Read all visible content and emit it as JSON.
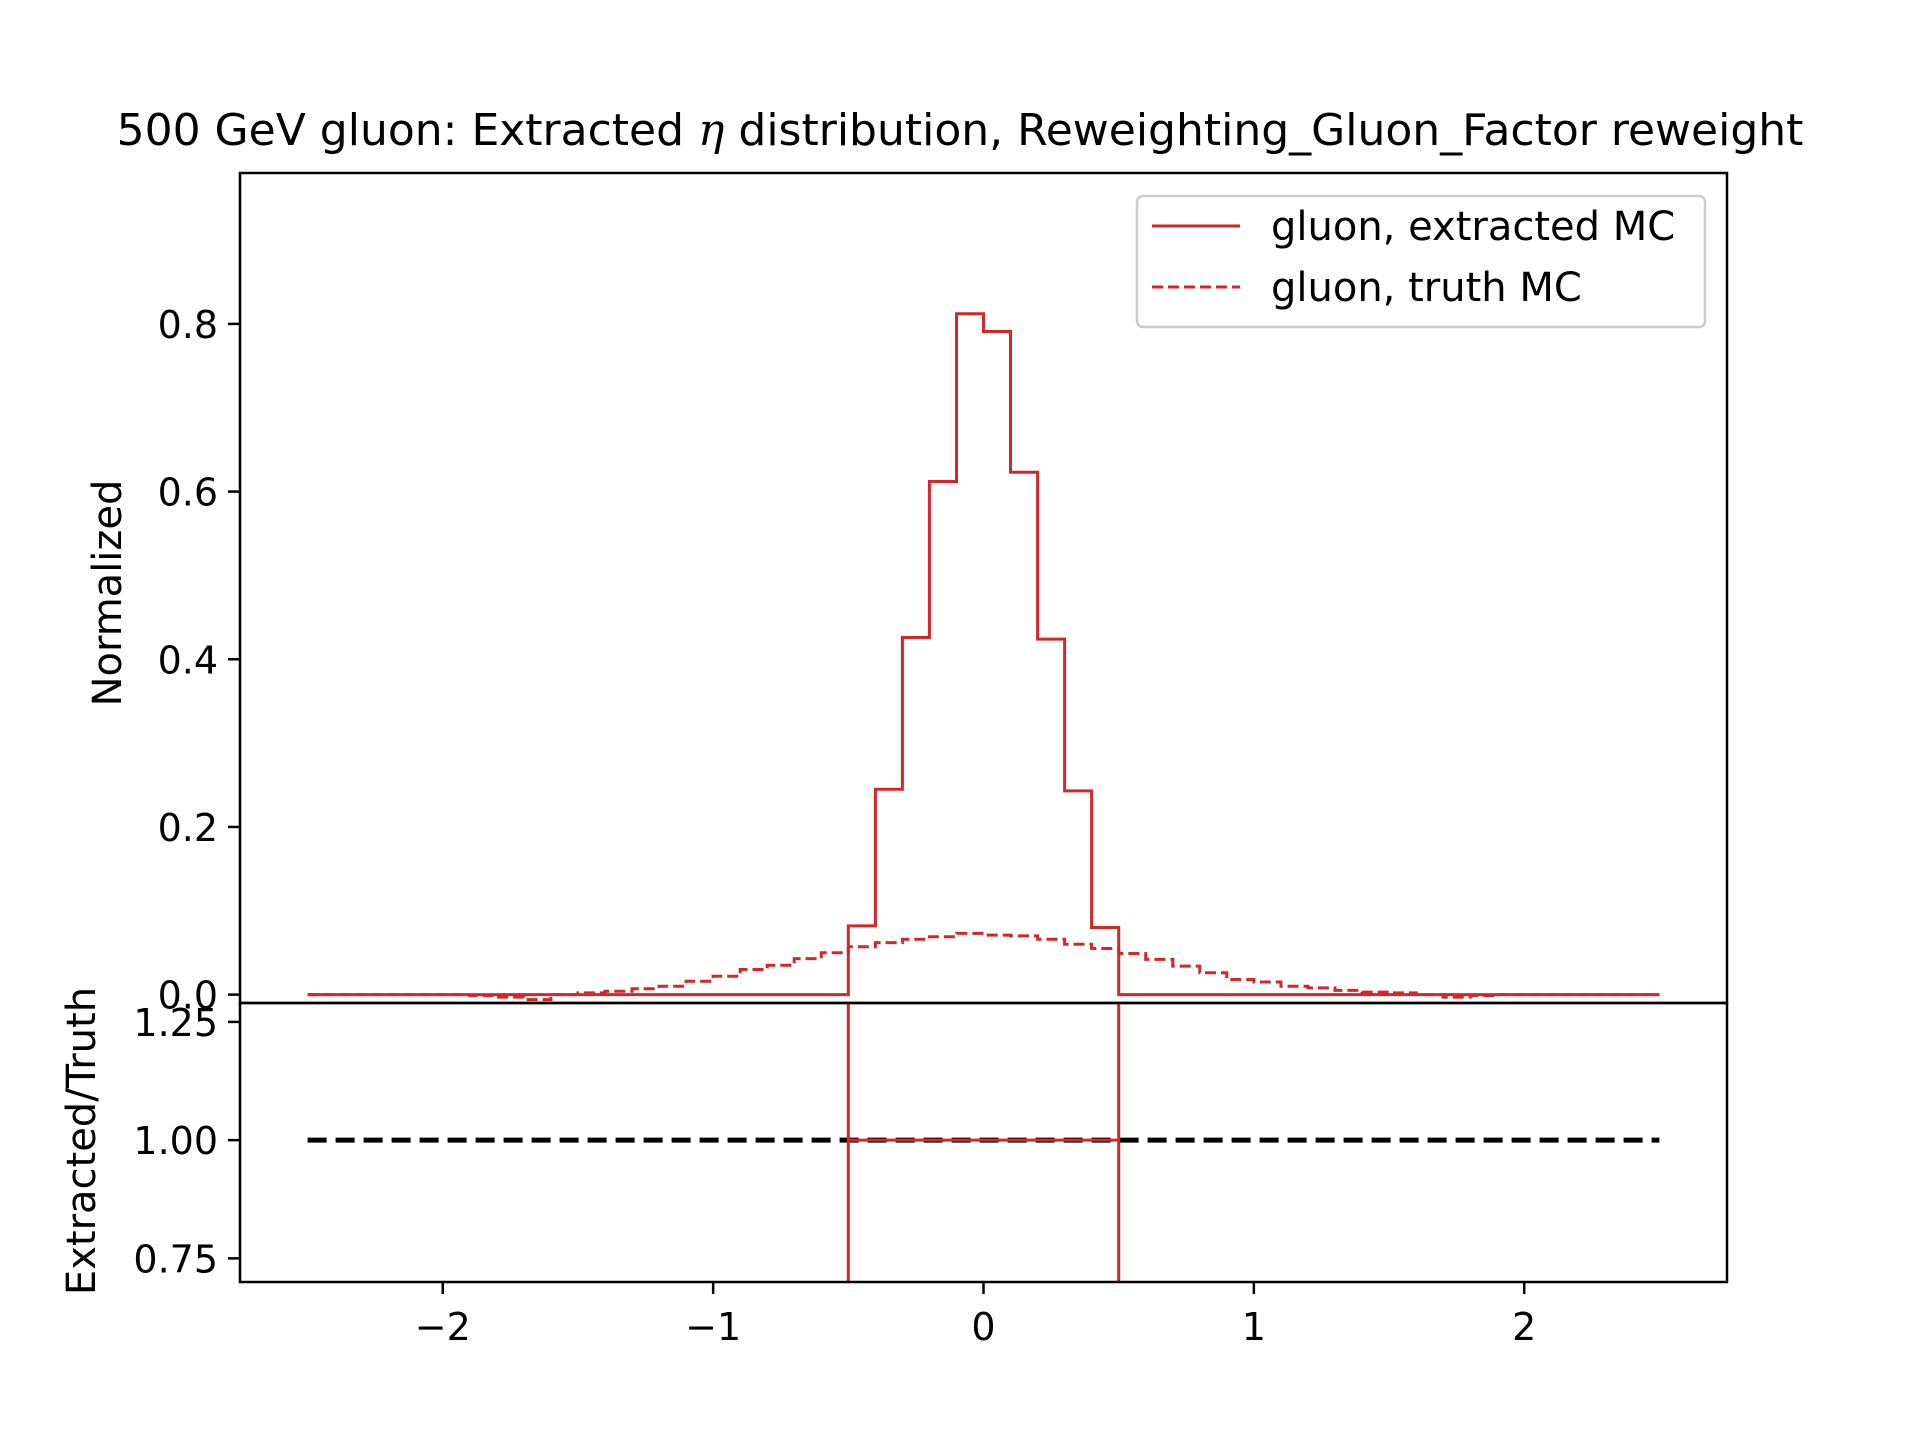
{
  "title": {
    "before": "500 GeV gluon: Extracted ",
    "eta": "η",
    "after": " distribution, Reweighting_Gluon_Factor reweight"
  },
  "chart_data": [
    {
      "type": "line",
      "title": "500 GeV gluon: Extracted η distribution, Reweighting_Gluon_Factor reweight",
      "drawstyle": "steps-post",
      "xlabel": "",
      "ylabel": "Normalized",
      "xlim": [
        -2.75,
        2.75
      ],
      "ylim": [
        -0.01,
        0.98
      ],
      "yticks": [
        0.0,
        0.2,
        0.4,
        0.6,
        0.8
      ],
      "ytick_labels": [
        "0.0",
        "0.2",
        "0.4",
        "0.6",
        "0.8"
      ],
      "grid": false,
      "legend": {
        "position": "top-right",
        "entries": [
          "gluon, extracted MC",
          "gluon, truth MC"
        ]
      },
      "series": [
        {
          "name": "gluon, extracted MC",
          "color": "#d62728",
          "linestyle": "solid",
          "x": [
            -2.5,
            -2.4,
            -2.3,
            -2.2,
            -2.1,
            -2.0,
            -1.9,
            -1.8,
            -1.7,
            -1.6,
            -1.5,
            -1.4,
            -1.3,
            -1.2,
            -1.1,
            -1.0,
            -0.9,
            -0.8,
            -0.7,
            -0.6,
            -0.5,
            -0.4,
            -0.3,
            -0.2,
            -0.1,
            0.0,
            0.1,
            0.2,
            0.3,
            0.4,
            0.5,
            0.6,
            0.7,
            0.8,
            0.9,
            1.0,
            1.1,
            1.2,
            1.3,
            1.4,
            1.5,
            1.6,
            1.7,
            1.8,
            1.9,
            2.0,
            2.1,
            2.2,
            2.3,
            2.4,
            2.5
          ],
          "y": [
            0.0,
            0.0,
            0.0,
            0.0,
            0.0,
            0.0,
            0.0,
            0.0,
            0.0,
            0.0,
            0.0,
            0.0,
            0.0,
            0.0,
            0.0,
            0.0,
            0.0,
            0.0,
            0.0,
            0.0,
            0.082,
            0.245,
            0.426,
            0.612,
            0.812,
            0.791,
            0.623,
            0.424,
            0.243,
            0.08,
            0.0,
            0.0,
            0.0,
            0.0,
            0.0,
            0.0,
            0.0,
            0.0,
            0.0,
            0.0,
            0.0,
            0.0,
            0.0,
            0.0,
            0.0,
            0.0,
            0.0,
            0.0,
            0.0,
            0.0,
            0.0
          ]
        },
        {
          "name": "gluon, truth MC",
          "color": "#d62728",
          "linestyle": "dashed",
          "x": [
            -2.5,
            -2.4,
            -2.3,
            -2.2,
            -2.1,
            -2.0,
            -1.9,
            -1.8,
            -1.7,
            -1.6,
            -1.5,
            -1.4,
            -1.3,
            -1.2,
            -1.1,
            -1.0,
            -0.9,
            -0.8,
            -0.7,
            -0.6,
            -0.5,
            -0.4,
            -0.3,
            -0.2,
            -0.1,
            0.0,
            0.1,
            0.2,
            0.3,
            0.4,
            0.5,
            0.6,
            0.7,
            0.8,
            0.9,
            1.0,
            1.1,
            1.2,
            1.3,
            1.4,
            1.5,
            1.6,
            1.7,
            1.8,
            1.9,
            2.0,
            2.1,
            2.2,
            2.3,
            2.4,
            2.5
          ],
          "y": [
            0.0,
            0.0,
            0.0,
            0.0,
            0.0,
            0.0,
            -0.001,
            -0.003,
            -0.006,
            0.0,
            0.002,
            0.004,
            0.007,
            0.01,
            0.016,
            0.022,
            0.03,
            0.035,
            0.043,
            0.05,
            0.057,
            0.062,
            0.066,
            0.069,
            0.073,
            0.071,
            0.07,
            0.066,
            0.06,
            0.055,
            0.049,
            0.042,
            0.034,
            0.026,
            0.018,
            0.015,
            0.01,
            0.008,
            0.005,
            0.003,
            0.002,
            0.0,
            -0.003,
            -0.001,
            0.0,
            0.0,
            0.0,
            0.0,
            0.0,
            0.0,
            0.0
          ]
        }
      ]
    },
    {
      "type": "line",
      "drawstyle": "steps-post",
      "xlabel": "",
      "ylabel": "Extracted/Truth",
      "xlim": [
        -2.75,
        2.75
      ],
      "ylim": [
        0.7,
        1.29
      ],
      "xticks": [
        -2,
        -1,
        0,
        1,
        2
      ],
      "xtick_labels": [
        "−2",
        "−1",
        "0",
        "1",
        "2"
      ],
      "yticks": [
        0.75,
        1.0,
        1.25
      ],
      "ytick_labels": [
        "0.75",
        "1.00",
        "1.25"
      ],
      "grid": false,
      "reference_line": {
        "y": 1.0,
        "x": [
          -2.5,
          2.5
        ],
        "color": "#000000",
        "linestyle": "dashed"
      },
      "series": [
        {
          "color": "#d62728",
          "linestyle": "solid",
          "x": [
            -0.5,
            0.5
          ],
          "y": [
            1.0,
            1.0
          ],
          "note_values": "ratio far exceeds the axis outside the central region; vertical edges at -0.5 and 0.5 run through the full panel"
        }
      ]
    }
  ]
}
